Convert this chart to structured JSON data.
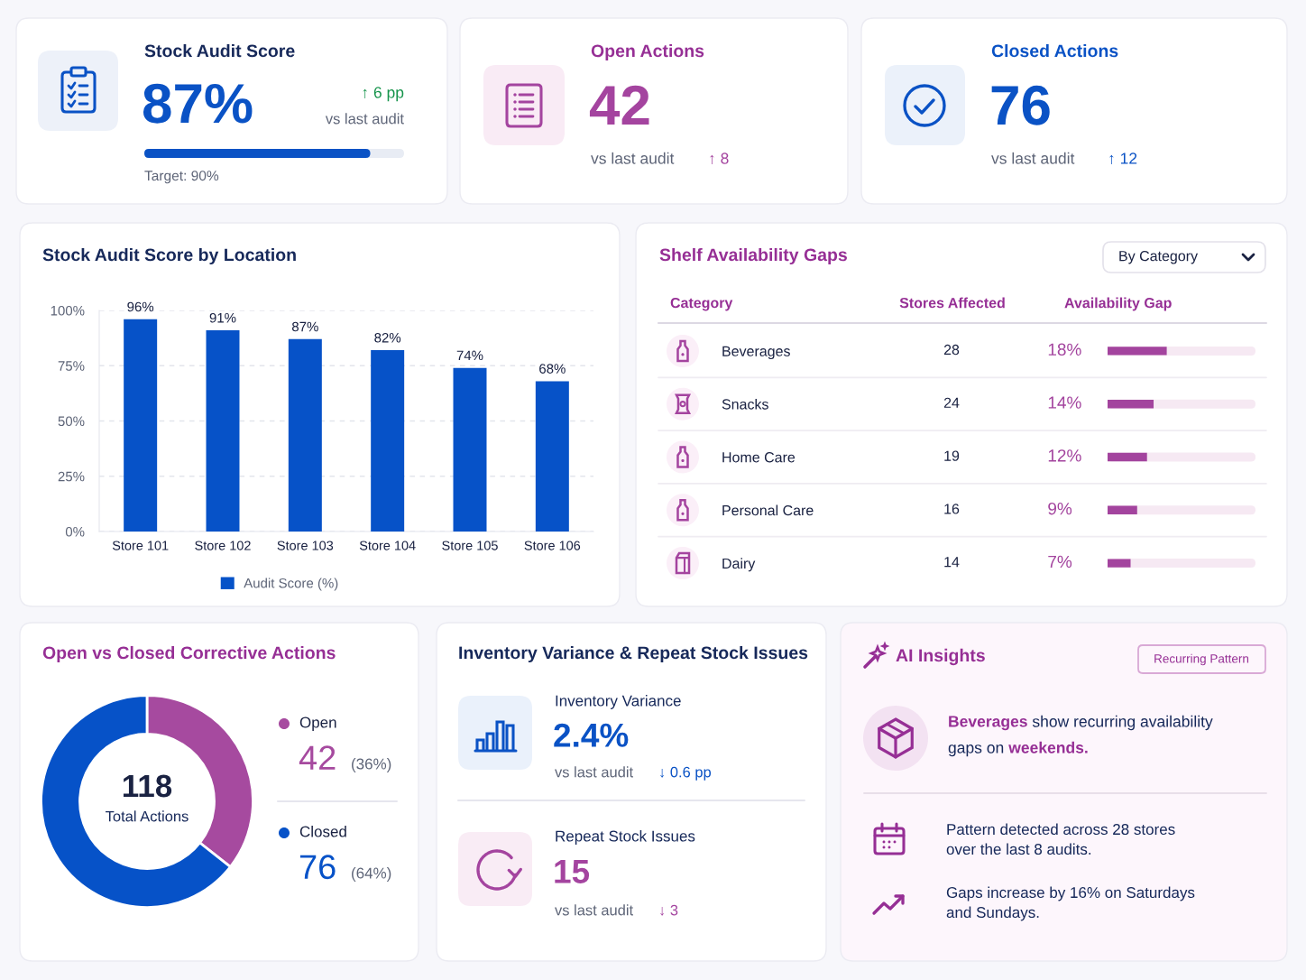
{
  "chart_data": [
    {
      "type": "other",
      "title": "Stock Audit Score",
      "values": [
        87
      ],
      "value_labels": [
        "87%"
      ],
      "annotations": [
        "↑ 6 pp",
        "vs last audit",
        "Target: 90%"
      ]
    },
    {
      "type": "other",
      "title": "Open Actions",
      "annotations": [
        "42",
        "vs last audit",
        "↑ 8"
      ]
    },
    {
      "type": "other",
      "title": "Closed Actions",
      "annotations": [
        "76",
        "vs last audit",
        "↑ 12"
      ]
    },
    {
      "type": "bar",
      "title": "Stock Audit Score by Location",
      "categories": [
        "Store 101",
        "Store 102",
        "Store 103",
        "Store 104",
        "Store 105",
        "Store 106"
      ],
      "series": [
        {
          "name": "Audit Score (%)",
          "color": "#0652c8",
          "values": [
            96,
            91,
            87,
            82,
            74,
            68
          ],
          "value_labels": [
            "96%",
            "91%",
            "87%",
            "82%",
            "74%",
            "68%"
          ]
        }
      ],
      "ylim": [
        0,
        100
      ],
      "yticks": [
        {
          "value": 0,
          "label": "0%"
        },
        {
          "value": 25,
          "label": "25%"
        },
        {
          "value": 50,
          "label": "50%"
        },
        {
          "value": 75,
          "label": "75%"
        },
        {
          "value": 100,
          "label": "100%"
        }
      ],
      "grid": "y",
      "legend": "bottom"
    },
    {
      "type": "bar",
      "orientation": "horizontal",
      "title": "Shelf Availability Gaps",
      "ylabel": "Category",
      "xlabel": "Availability Gap",
      "categories": [
        "Beverages",
        "Snacks",
        "Home Care",
        "Personal Care",
        "Dairy"
      ],
      "series": [
        {
          "color": "#a3449e",
          "values": [
            18,
            14,
            12,
            9,
            7
          ],
          "value_labels": [
            "18%",
            "14%",
            "12%",
            "9%",
            "7%"
          ]
        }
      ],
      "xlim": [
        0,
        45
      ],
      "tick_labels": "y",
      "annotations": [
        "By Category",
        "Stores Affected",
        "28",
        "24",
        "19",
        "16",
        "14"
      ]
    },
    {
      "type": "donut",
      "title": "Open vs Closed Corrective Actions",
      "categories": [
        "Open",
        "Closed"
      ],
      "values": [
        42,
        76
      ],
      "colors": [
        "#a64a9f",
        "#0652c8"
      ],
      "data_labels": true,
      "legend": "right",
      "annotations": [
        "118",
        "Total Actions",
        "(36%)",
        "(64%)"
      ]
    },
    {
      "type": "other",
      "title": "Inventory Variance & Repeat Stock Issues",
      "annotations": [
        "Inventory Variance",
        "2.4%",
        "vs last audit",
        "↓ 0.6 pp",
        "Repeat Stock Issues",
        "15",
        "vs last audit",
        "↓ 3"
      ]
    },
    {
      "type": "other",
      "title": "AI Insights",
      "annotations": [
        "Recurring Pattern",
        "Beverages",
        "show recurring availability",
        "gaps on",
        "weekends.",
        "Pattern detected across 28 stores over the last 8 audits.",
        "Gaps increase by 16% on Saturdays and Sundays."
      ]
    }
  ]
}
